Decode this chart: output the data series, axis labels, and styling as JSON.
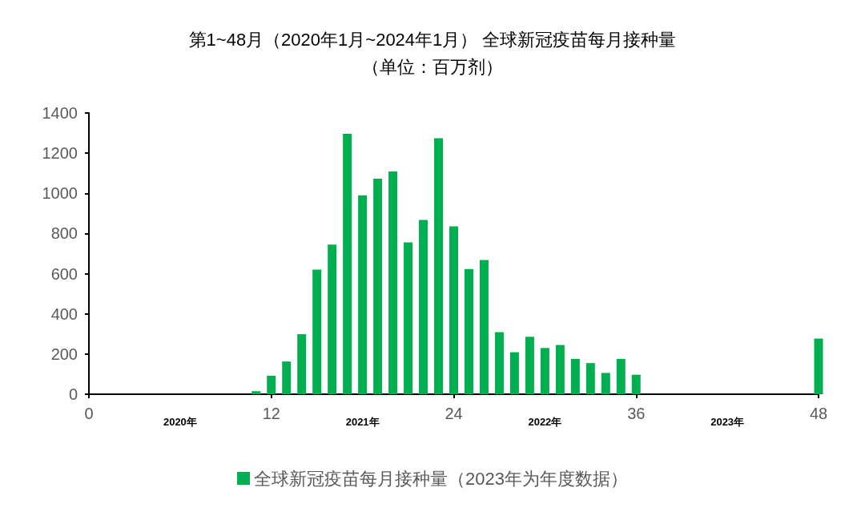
{
  "chart_data": {
    "type": "bar",
    "title": "第1~48月（2020年1月~2024年1月） 全球新冠疫苗每月接种量",
    "subtitle": "（单位：百万剂）",
    "x": [
      11,
      12,
      13,
      14,
      15,
      16,
      17,
      18,
      19,
      20,
      21,
      22,
      23,
      24,
      25,
      26,
      27,
      28,
      29,
      30,
      31,
      32,
      33,
      34,
      35,
      36,
      48
    ],
    "series": [
      {
        "name": "全球新冠疫苗每月接种量（2023年为年度数据）",
        "color": "#00b050",
        "values": [
          15,
          92,
          163,
          299,
          620,
          745,
          1296,
          990,
          1073,
          1109,
          756,
          868,
          1274,
          836,
          623,
          668,
          309,
          209,
          286,
          230,
          245,
          176,
          155,
          106,
          176,
          97,
          277
        ]
      }
    ],
    "xlim": [
      0,
      48
    ],
    "xticks": [
      0,
      12,
      24,
      36,
      48
    ],
    "annotations": [
      "2020年",
      "2021年",
      "2022年",
      "2023年"
    ],
    "ylim": [
      0,
      1400
    ],
    "yticks": [
      0,
      200,
      400,
      600,
      800,
      1000,
      1200,
      1400
    ],
    "grid": false,
    "legend": "bottom"
  }
}
